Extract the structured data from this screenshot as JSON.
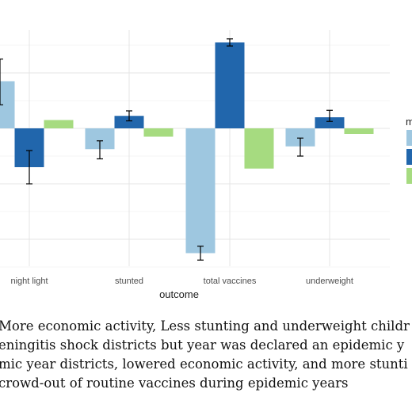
{
  "chart_data": {
    "type": "bar",
    "xlabel": "outcome",
    "ylabel": "",
    "categories": [
      "night light",
      "stunted",
      "total vaccines",
      "underweight"
    ],
    "ylim": [
      -5.0,
      3.1
    ],
    "grid": true,
    "legend": {
      "title": "m",
      "placement": "right"
    },
    "series": [
      {
        "color": "#9ec7e0",
        "values": [
          1.7,
          -0.75,
          -4.5,
          -0.65
        ],
        "error_low": [
          0.85,
          -1.1,
          -4.75,
          -1.0
        ],
        "error_high": [
          2.5,
          -0.45,
          -4.25,
          -0.35
        ]
      },
      {
        "color": "#2166ac",
        "values": [
          -1.4,
          0.45,
          3.1,
          0.4
        ],
        "error_low": [
          -2.0,
          0.27,
          2.97,
          0.25
        ],
        "error_high": [
          -0.8,
          0.63,
          3.23,
          0.65
        ]
      },
      {
        "color": "#a6db80",
        "values": [
          0.3,
          -0.3,
          -1.45,
          -0.2
        ]
      }
    ]
  },
  "caption": {
    "lines": [
      "More economic activity, Less stunting and underweight childr",
      "eningitis shock districts but year was declared an epidemic y",
      "mic year districts, lowered economic activity, and more stunti",
      "crowd-out of routine vaccines during epidemic years"
    ]
  }
}
